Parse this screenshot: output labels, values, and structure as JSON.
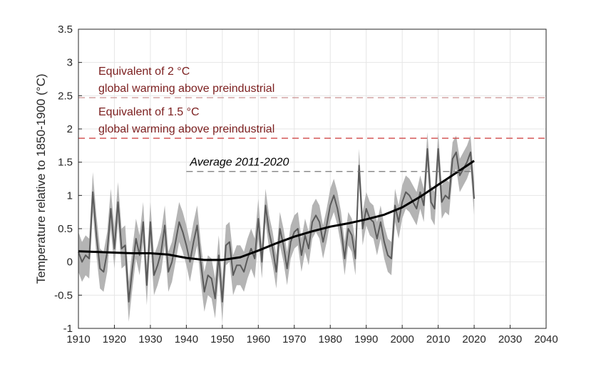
{
  "chart_data": {
    "type": "line",
    "y_label": "Temperature relative to 1850-1900 (°C)",
    "xlim": [
      1910,
      2040
    ],
    "xticks": [
      1910,
      1920,
      1930,
      1940,
      1950,
      1960,
      1970,
      1980,
      1990,
      2000,
      2010,
      2020,
      2030,
      2040
    ],
    "ylim": [
      -1,
      3.5
    ],
    "yticks": [
      -1,
      -0.5,
      0,
      0.5,
      1,
      1.5,
      2,
      2.5,
      3,
      3.5
    ],
    "grid": true,
    "series": [
      {
        "color": "#5a5a5a",
        "band_color": "#b4b4b4",
        "x": [
          1910,
          1911,
          1912,
          1913,
          1914,
          1915,
          1916,
          1917,
          1918,
          1919,
          1920,
          1921,
          1922,
          1923,
          1924,
          1925,
          1926,
          1927,
          1928,
          1929,
          1930,
          1931,
          1932,
          1933,
          1934,
          1935,
          1936,
          1937,
          1938,
          1939,
          1940,
          1941,
          1942,
          1943,
          1944,
          1945,
          1946,
          1947,
          1948,
          1949,
          1950,
          1951,
          1952,
          1953,
          1954,
          1955,
          1956,
          1957,
          1958,
          1959,
          1960,
          1961,
          1962,
          1963,
          1964,
          1965,
          1966,
          1967,
          1968,
          1969,
          1970,
          1971,
          1972,
          1973,
          1974,
          1975,
          1976,
          1977,
          1978,
          1979,
          1980,
          1981,
          1982,
          1983,
          1984,
          1985,
          1986,
          1987,
          1988,
          1989,
          1990,
          1991,
          1992,
          1993,
          1994,
          1995,
          1996,
          1997,
          1998,
          1999,
          2000,
          2001,
          2002,
          2003,
          2004,
          2005,
          2006,
          2007,
          2008,
          2009,
          2010,
          2011,
          2012,
          2013,
          2014,
          2015,
          2016,
          2017,
          2018,
          2019,
          2020
        ],
        "values": [
          0.15,
          0.0,
          0.1,
          0.05,
          1.05,
          0.4,
          -0.1,
          -0.15,
          0.15,
          0.8,
          0.2,
          0.9,
          0.2,
          0.25,
          -0.6,
          -0.1,
          0.35,
          0.1,
          0.6,
          -0.35,
          0.6,
          -0.2,
          -0.05,
          0.15,
          0.55,
          -0.15,
          0.0,
          0.3,
          0.6,
          0.45,
          0.25,
          0.0,
          0.3,
          0.55,
          0.0,
          -0.45,
          -0.2,
          -0.25,
          -0.55,
          0.1,
          -0.6,
          0.25,
          0.3,
          -0.2,
          -0.05,
          -0.05,
          -0.15,
          0.05,
          0.2,
          0.05,
          0.65,
          0.0,
          0.85,
          0.45,
          0.2,
          -0.15,
          0.5,
          0.25,
          -0.1,
          0.3,
          0.45,
          0.5,
          0.1,
          0.4,
          0.2,
          0.6,
          0.7,
          0.6,
          0.3,
          0.55,
          0.85,
          1.0,
          0.8,
          0.5,
          0.05,
          0.5,
          0.4,
          0.05,
          1.45,
          0.5,
          0.8,
          0.65,
          0.6,
          0.35,
          0.6,
          0.3,
          0.1,
          0.05,
          0.85,
          0.6,
          0.9,
          1.05,
          1.0,
          0.9,
          0.8,
          1.05,
          0.85,
          1.7,
          0.9,
          0.8,
          1.7,
          0.9,
          1.0,
          0.95,
          1.55,
          1.65,
          1.3,
          1.4,
          1.5,
          1.65,
          0.95
        ],
        "errors": [
          0.3,
          0.3,
          0.3,
          0.3,
          0.3,
          0.3,
          0.3,
          0.3,
          0.3,
          0.3,
          0.3,
          0.3,
          0.3,
          0.3,
          0.3,
          0.3,
          0.3,
          0.3,
          0.3,
          0.3,
          0.3,
          0.3,
          0.3,
          0.3,
          0.3,
          0.3,
          0.3,
          0.3,
          0.3,
          0.3,
          0.3,
          0.3,
          0.3,
          0.3,
          0.3,
          0.3,
          0.3,
          0.3,
          0.3,
          0.3,
          0.3,
          0.3,
          0.3,
          0.3,
          0.3,
          0.3,
          0.3,
          0.3,
          0.3,
          0.3,
          0.3,
          0.25,
          0.25,
          0.25,
          0.25,
          0.25,
          0.25,
          0.25,
          0.25,
          0.25,
          0.25,
          0.25,
          0.25,
          0.25,
          0.25,
          0.25,
          0.25,
          0.25,
          0.25,
          0.25,
          0.25,
          0.25,
          0.25,
          0.25,
          0.25,
          0.25,
          0.25,
          0.25,
          0.25,
          0.25,
          0.25,
          0.25,
          0.25,
          0.25,
          0.25,
          0.25,
          0.25,
          0.25,
          0.25,
          0.25,
          0.25,
          0.25,
          0.25,
          0.25,
          0.25,
          0.25,
          0.25,
          0.25,
          0.25,
          0.25,
          0.25,
          0.25,
          0.25,
          0.25,
          0.25,
          0.25,
          0.25,
          0.25,
          0.25,
          0.25,
          0.25
        ]
      },
      {
        "color": "#000000",
        "x": [
          1910,
          1915,
          1920,
          1925,
          1930,
          1935,
          1940,
          1945,
          1950,
          1955,
          1960,
          1965,
          1970,
          1975,
          1980,
          1985,
          1990,
          1995,
          2000,
          2005,
          2010,
          2015,
          2020
        ],
        "values": [
          0.16,
          0.15,
          0.14,
          0.13,
          0.13,
          0.11,
          0.06,
          0.03,
          0.03,
          0.07,
          0.17,
          0.28,
          0.38,
          0.46,
          0.53,
          0.58,
          0.64,
          0.71,
          0.82,
          0.98,
          1.16,
          1.34,
          1.52
        ]
      }
    ],
    "reference_lines": [
      {
        "value": 2.47,
        "x": [
          1910,
          2040
        ],
        "color": "#c89090",
        "text_color": "#7b1e1e",
        "italic": false,
        "label": [
          "Equivalent of 2 °C",
          "global warming above preindustrial"
        ]
      },
      {
        "value": 1.86,
        "x": [
          1910,
          2040
        ],
        "color": "#d04848",
        "text_color": "#7b1e1e",
        "italic": false,
        "label": [
          "Equivalent of 1.5 °C",
          "global warming above preindustrial"
        ]
      },
      {
        "value": 1.36,
        "x": [
          1940,
          2020
        ],
        "color": "#777777",
        "text_color": "#000000",
        "italic": true,
        "label": [
          "Average 2011-2020"
        ]
      }
    ]
  }
}
